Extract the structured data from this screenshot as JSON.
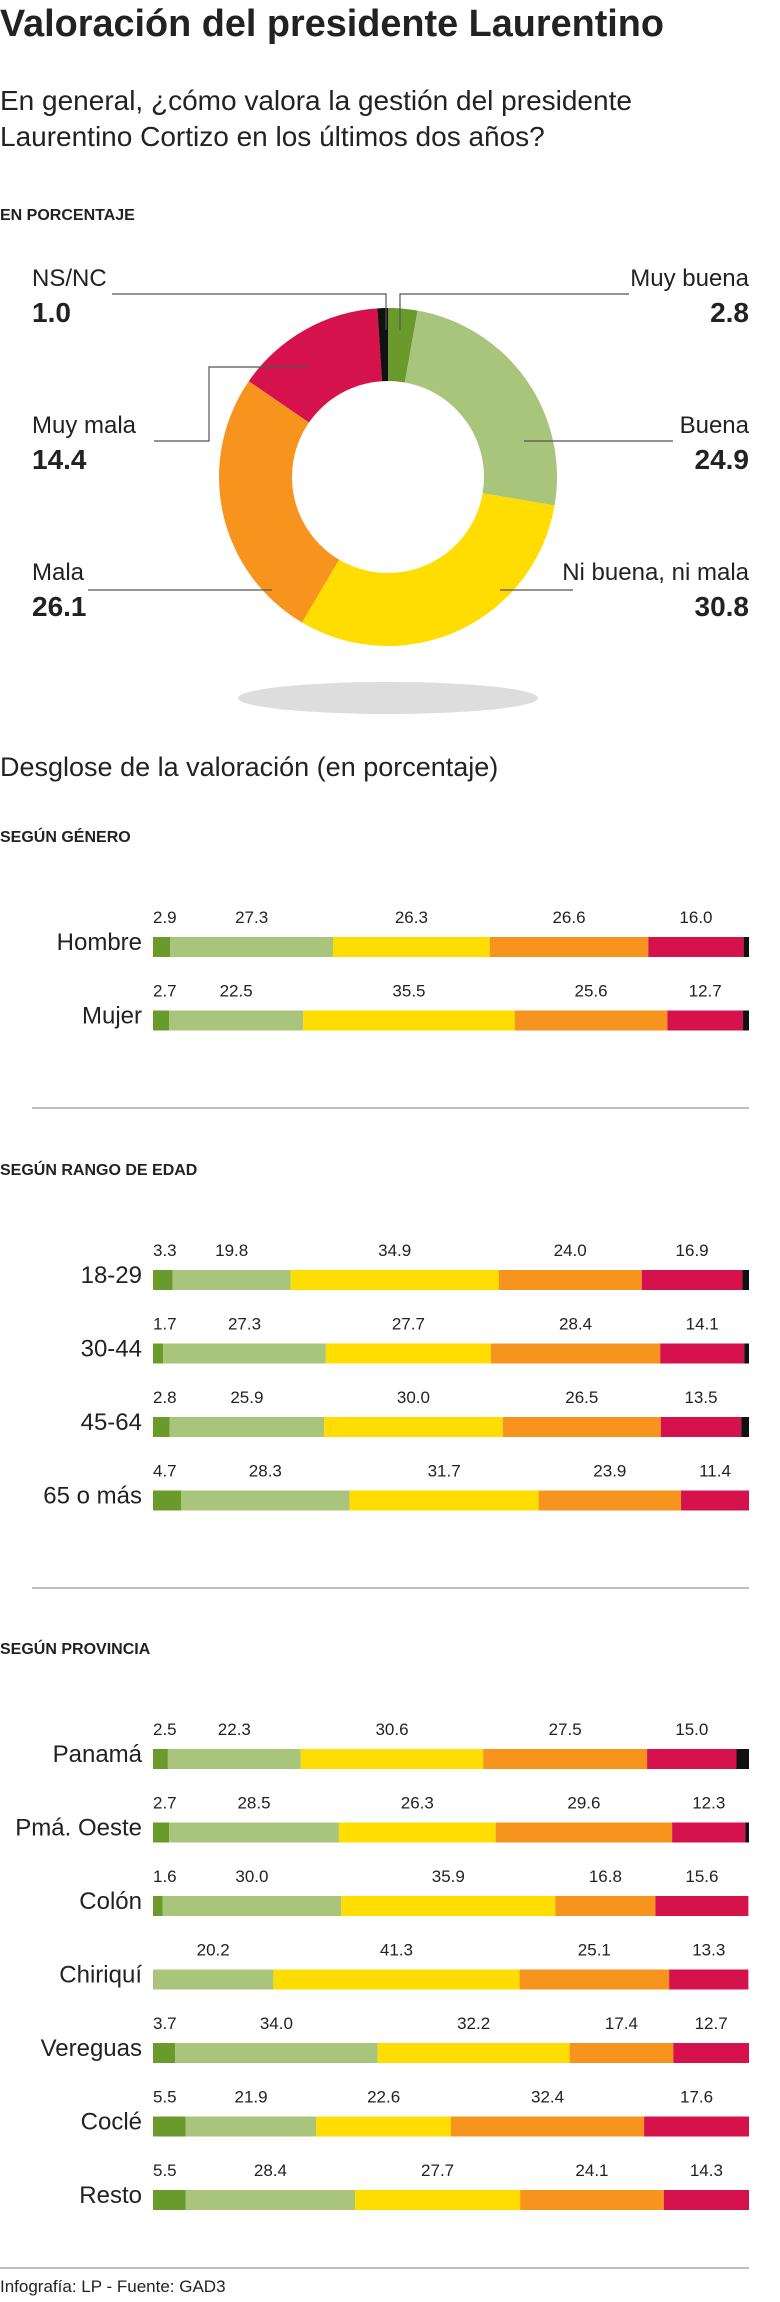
{
  "title": "Valoración del presidente Laurentino",
  "subtitle": [
    "En general, ¿cómo valora la gestión del presidente",
    "Laurentino Cortizo en los últimos dos años?"
  ],
  "breakdown_title": "Desglose de la valoración (en porcentaje)",
  "footer": "Infografía: LP - Fuente: GAD3",
  "chart_data": [
    {
      "type": "pie",
      "donut": true,
      "subtitle": "EN PORCENTAJE",
      "categories": [
        "Muy buena",
        "Buena",
        "Ni buena, ni mala",
        "Mala",
        "Muy mala",
        "NS/NC"
      ],
      "values": [
        2.8,
        24.9,
        30.8,
        26.1,
        14.4,
        1.0
      ],
      "value_labels": [
        "2.8",
        "24.9",
        "30.8",
        "26.1",
        "14.4",
        "1.0"
      ],
      "colors": [
        "#6b9a2c",
        "#a9c47b",
        "#ffdd00",
        "#f7941d",
        "#d6124c",
        "#111111"
      ]
    },
    {
      "type": "bar",
      "orientation": "horizontal",
      "stacked": true,
      "title": "SEGÚN GÉNERO",
      "categories": [
        "Hombre",
        "Mujer"
      ],
      "xlim": [
        0,
        100
      ],
      "series": [
        {
          "color": "#6b9a2c",
          "values": [
            2.9,
            2.7
          ],
          "value_labels": [
            "2.9",
            "2.7"
          ]
        },
        {
          "color": "#a9c47b",
          "values": [
            27.3,
            22.5
          ],
          "value_labels": [
            "27.3",
            "22.5"
          ]
        },
        {
          "color": "#ffdd00",
          "values": [
            26.3,
            35.5
          ],
          "value_labels": [
            "26.3",
            "35.5"
          ]
        },
        {
          "color": "#f7941d",
          "values": [
            26.6,
            25.6
          ],
          "value_labels": [
            "26.6",
            "25.6"
          ]
        },
        {
          "color": "#d6124c",
          "values": [
            16.0,
            12.7
          ],
          "value_labels": [
            "16.0",
            "12.7"
          ]
        },
        {
          "color": "#111111",
          "values": [
            0.9,
            1.0
          ]
        }
      ]
    },
    {
      "type": "bar",
      "orientation": "horizontal",
      "stacked": true,
      "title": "SEGÚN RANGO DE EDAD",
      "categories": [
        "18-29",
        "30-44",
        "45-64",
        "65 o más"
      ],
      "xlim": [
        0,
        100
      ],
      "series": [
        {
          "color": "#6b9a2c",
          "values": [
            3.3,
            1.7,
            2.8,
            4.7
          ],
          "value_labels": [
            "3.3",
            "1.7",
            "2.8",
            "4.7"
          ]
        },
        {
          "color": "#a9c47b",
          "values": [
            19.8,
            27.3,
            25.9,
            28.3
          ],
          "value_labels": [
            "19.8",
            "27.3",
            "25.9",
            "28.3"
          ]
        },
        {
          "color": "#ffdd00",
          "values": [
            34.9,
            27.7,
            30.0,
            31.7
          ],
          "value_labels": [
            "34.9",
            "27.7",
            "30.0",
            "31.7"
          ]
        },
        {
          "color": "#f7941d",
          "values": [
            24.0,
            28.4,
            26.5,
            23.9
          ],
          "value_labels": [
            "24.0",
            "28.4",
            "26.5",
            "23.9"
          ]
        },
        {
          "color": "#d6124c",
          "values": [
            16.9,
            14.1,
            13.5,
            11.4
          ],
          "value_labels": [
            "16.9",
            "14.1",
            "13.5",
            "11.4"
          ]
        },
        {
          "color": "#111111",
          "values": [
            1.1,
            0.8,
            1.3,
            null
          ]
        }
      ]
    },
    {
      "type": "bar",
      "orientation": "horizontal",
      "stacked": true,
      "title": "SEGÚN PROVINCIA",
      "categories": [
        "Panamá",
        "Pmá. Oeste",
        "Colón",
        "Chiriquí",
        "Vereguas",
        "Coclé",
        "Resto"
      ],
      "xlim": [
        0,
        100
      ],
      "series": [
        {
          "color": "#6b9a2c",
          "values": [
            2.5,
            2.7,
            1.6,
            null,
            3.7,
            5.5,
            5.5
          ],
          "value_labels": [
            "2.5",
            "2.7",
            "1.6",
            null,
            "3.7",
            "5.5",
            "5.5"
          ]
        },
        {
          "color": "#a9c47b",
          "values": [
            22.3,
            28.5,
            30.0,
            20.2,
            34.0,
            21.9,
            28.4
          ],
          "value_labels": [
            "22.3",
            "28.5",
            "30.0",
            "20.2",
            "34.0",
            "21.9",
            "28.4"
          ]
        },
        {
          "color": "#ffdd00",
          "values": [
            30.6,
            26.3,
            35.9,
            41.3,
            32.2,
            22.6,
            27.7
          ],
          "value_labels": [
            "30.6",
            "26.3",
            "35.9",
            "41.3",
            "32.2",
            "22.6",
            "27.7"
          ]
        },
        {
          "color": "#f7941d",
          "values": [
            27.5,
            29.6,
            16.8,
            25.1,
            17.4,
            32.4,
            24.1
          ],
          "value_labels": [
            "27.5",
            "29.6",
            "16.8",
            "25.1",
            "17.4",
            "32.4",
            "24.1"
          ]
        },
        {
          "color": "#d6124c",
          "values": [
            15.0,
            12.3,
            15.6,
            13.3,
            12.7,
            17.6,
            14.3
          ],
          "value_labels": [
            "15.0",
            "12.3",
            "15.6",
            "13.3",
            "12.7",
            "17.6",
            "14.3"
          ]
        },
        {
          "color": "#111111",
          "values": [
            2.1,
            0.6,
            null,
            null,
            null,
            null,
            null
          ]
        }
      ]
    }
  ]
}
